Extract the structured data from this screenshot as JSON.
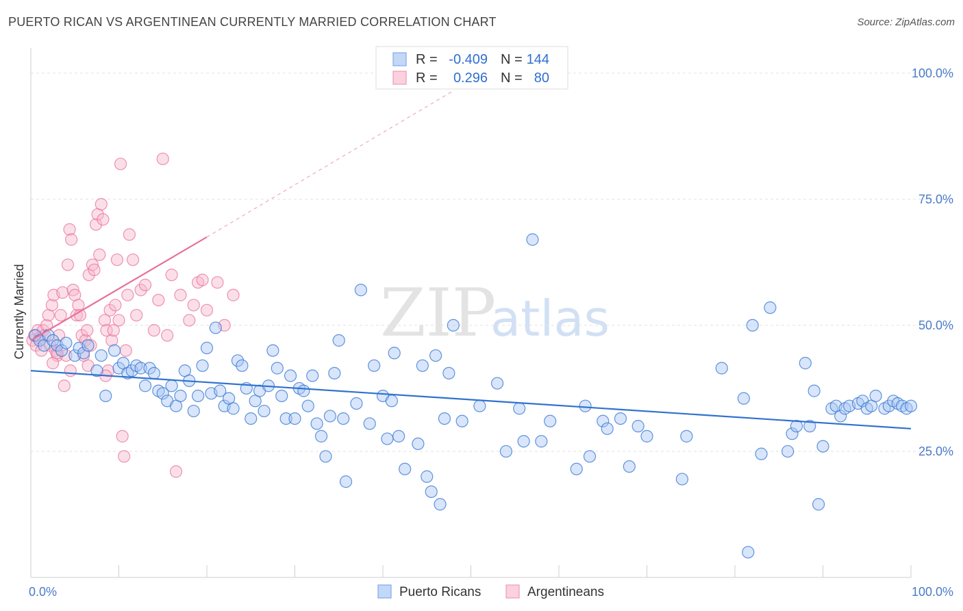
{
  "header": {
    "title": "PUERTO RICAN VS ARGENTINEAN CURRENTLY MARRIED CORRELATION CHART",
    "source": "Source: ZipAtlas.com"
  },
  "watermark": {
    "zip": "ZIP",
    "atlas": "atlas"
  },
  "legend_top": {
    "rows": [
      {
        "r_label": "R =",
        "r_value": "-0.409",
        "n_label": "N =",
        "n_value": "144",
        "color": "#7eaaf0"
      },
      {
        "r_label": "R =",
        "r_value": "0.296",
        "n_label": "N =",
        "n_value": "80",
        "color": "#f09ab8"
      }
    ]
  },
  "legend_bottom": {
    "items": [
      {
        "label": "Puerto Ricans",
        "color": "#7eaaf0"
      },
      {
        "label": "Argentineans",
        "color": "#f09ab8"
      }
    ]
  },
  "chart_data": {
    "type": "scatter",
    "title": "PUERTO RICAN VS ARGENTINEAN CURRENTLY MARRIED CORRELATION CHART",
    "ylabel": "Currently Married",
    "xlim": [
      0,
      100
    ],
    "ylim": [
      0,
      105
    ],
    "x_ticks": [
      "0.0%",
      "100.0%"
    ],
    "y_ticks": [
      {
        "value": 25,
        "label": "25.0%"
      },
      {
        "value": 50,
        "label": "50.0%"
      },
      {
        "value": 75,
        "label": "75.0%"
      },
      {
        "value": 100,
        "label": "100.0%"
      }
    ],
    "grid": true,
    "colors": {
      "blue": "#2f72d0",
      "pink": "#e8709a",
      "blue_fill": "#a9c6f5",
      "pink_fill": "#f7b8cd"
    },
    "series": [
      {
        "name": "Puerto Ricans",
        "trend": {
          "x": [
            0,
            100
          ],
          "y": [
            41,
            29.5
          ]
        },
        "points": [
          [
            0.5,
            48
          ],
          [
            1,
            47
          ],
          [
            1.5,
            46
          ],
          [
            2,
            48
          ],
          [
            2.5,
            47
          ],
          [
            3,
            46
          ],
          [
            3.5,
            45
          ],
          [
            4,
            46.5
          ],
          [
            5,
            44
          ],
          [
            5.5,
            45.5
          ],
          [
            6,
            44.5
          ],
          [
            6.5,
            46
          ],
          [
            7.5,
            41
          ],
          [
            8,
            44
          ],
          [
            8.5,
            36
          ],
          [
            9.5,
            45
          ],
          [
            10,
            41.5
          ],
          [
            10.5,
            42.5
          ],
          [
            11,
            40.5
          ],
          [
            11.5,
            41
          ],
          [
            12,
            42
          ],
          [
            12.5,
            41.5
          ],
          [
            13,
            38
          ],
          [
            13.5,
            41.5
          ],
          [
            14,
            40.5
          ],
          [
            14.5,
            37
          ],
          [
            15,
            36.5
          ],
          [
            15.5,
            35
          ],
          [
            16,
            38
          ],
          [
            16.5,
            34
          ],
          [
            17,
            36
          ],
          [
            17.5,
            41
          ],
          [
            18,
            39
          ],
          [
            18.5,
            33
          ],
          [
            19,
            36
          ],
          [
            19.5,
            42
          ],
          [
            20,
            45.5
          ],
          [
            20.5,
            36.5
          ],
          [
            21,
            49.5
          ],
          [
            21.5,
            37
          ],
          [
            22,
            34
          ],
          [
            22.5,
            35.5
          ],
          [
            23,
            33.5
          ],
          [
            23.5,
            43
          ],
          [
            24,
            42
          ],
          [
            24.5,
            37.5
          ],
          [
            25,
            31.5
          ],
          [
            25.5,
            35
          ],
          [
            26,
            37
          ],
          [
            26.5,
            33
          ],
          [
            27,
            38
          ],
          [
            27.5,
            45
          ],
          [
            28,
            41.5
          ],
          [
            28.5,
            36
          ],
          [
            29,
            31.5
          ],
          [
            29.5,
            40
          ],
          [
            30,
            31.5
          ],
          [
            30.5,
            37.5
          ],
          [
            31,
            37
          ],
          [
            31.5,
            34
          ],
          [
            32,
            40
          ],
          [
            32.5,
            30.5
          ],
          [
            33,
            28
          ],
          [
            33.5,
            24
          ],
          [
            34,
            32
          ],
          [
            34.5,
            40.5
          ],
          [
            35,
            47
          ],
          [
            35.5,
            31.5
          ],
          [
            35.8,
            19
          ],
          [
            37,
            34.5
          ],
          [
            37.5,
            57
          ],
          [
            38.5,
            30.5
          ],
          [
            39,
            42
          ],
          [
            40,
            36
          ],
          [
            40.5,
            27.5
          ],
          [
            41,
            35
          ],
          [
            41.3,
            44.5
          ],
          [
            41.8,
            28
          ],
          [
            42.5,
            21.5
          ],
          [
            44,
            26.5
          ],
          [
            44.5,
            42
          ],
          [
            45,
            20
          ],
          [
            45.5,
            17
          ],
          [
            46,
            44
          ],
          [
            46.5,
            14.5
          ],
          [
            47,
            31.5
          ],
          [
            47.5,
            40.5
          ],
          [
            48,
            50
          ],
          [
            49,
            31
          ],
          [
            51,
            34
          ],
          [
            53,
            38.5
          ],
          [
            54,
            25
          ],
          [
            55.5,
            33.5
          ],
          [
            56,
            27
          ],
          [
            57,
            67
          ],
          [
            58,
            27
          ],
          [
            59,
            31
          ],
          [
            62,
            21.5
          ],
          [
            63,
            34
          ],
          [
            63.5,
            24
          ],
          [
            65,
            31
          ],
          [
            65.5,
            29.5
          ],
          [
            67,
            31.5
          ],
          [
            68,
            22
          ],
          [
            69,
            30
          ],
          [
            70,
            28
          ],
          [
            74,
            19.5
          ],
          [
            74.5,
            28
          ],
          [
            78.5,
            41.5
          ],
          [
            81,
            35.5
          ],
          [
            81.5,
            5
          ],
          [
            82,
            50
          ],
          [
            83,
            24.5
          ],
          [
            84,
            53.5
          ],
          [
            86,
            25
          ],
          [
            86.5,
            28.5
          ],
          [
            87,
            30
          ],
          [
            88,
            42.5
          ],
          [
            88.5,
            30
          ],
          [
            89,
            37
          ],
          [
            89.5,
            14.5
          ],
          [
            90,
            26
          ],
          [
            91,
            33.5
          ],
          [
            91.5,
            34
          ],
          [
            92,
            32
          ],
          [
            92.5,
            33.5
          ],
          [
            93,
            34
          ],
          [
            94,
            34.5
          ],
          [
            94.5,
            35
          ],
          [
            95,
            33.5
          ],
          [
            95.5,
            34
          ],
          [
            96,
            36
          ],
          [
            97,
            33.5
          ],
          [
            97.5,
            34
          ],
          [
            98,
            35
          ],
          [
            98.5,
            34.5
          ],
          [
            99,
            34
          ],
          [
            99.5,
            33.5
          ],
          [
            100,
            34
          ]
        ]
      },
      {
        "name": "Argentineans",
        "trend": {
          "x": [
            0,
            20
          ],
          "y": [
            47,
            67.5
          ]
        },
        "trend_extended": {
          "x": [
            20,
            48
          ],
          "y": [
            67.5,
            96.5
          ]
        },
        "points": [
          [
            0.2,
            47
          ],
          [
            0.4,
            48
          ],
          [
            0.6,
            46
          ],
          [
            0.8,
            49
          ],
          [
            1,
            47.5
          ],
          [
            1.2,
            45
          ],
          [
            1.4,
            49
          ],
          [
            1.6,
            48
          ],
          [
            1.8,
            50
          ],
          [
            2,
            52
          ],
          [
            2.2,
            46
          ],
          [
            2.4,
            54
          ],
          [
            2.6,
            56
          ],
          [
            2.8,
            45
          ],
          [
            3,
            44
          ],
          [
            3.2,
            48
          ],
          [
            3.4,
            52
          ],
          [
            3.6,
            56.5
          ],
          [
            3.8,
            38
          ],
          [
            4,
            44
          ],
          [
            4.2,
            62
          ],
          [
            4.4,
            69
          ],
          [
            4.6,
            67
          ],
          [
            4.8,
            57
          ],
          [
            5,
            56
          ],
          [
            5.2,
            52
          ],
          [
            5.4,
            54
          ],
          [
            5.6,
            52
          ],
          [
            5.8,
            48
          ],
          [
            6,
            44
          ],
          [
            6.2,
            47
          ],
          [
            6.4,
            49
          ],
          [
            6.6,
            60
          ],
          [
            6.8,
            46
          ],
          [
            7,
            62
          ],
          [
            7.2,
            61
          ],
          [
            7.4,
            70
          ],
          [
            7.6,
            72
          ],
          [
            7.8,
            64
          ],
          [
            8,
            74
          ],
          [
            8.2,
            71
          ],
          [
            8.4,
            51
          ],
          [
            8.6,
            49
          ],
          [
            8.8,
            41
          ],
          [
            9,
            53
          ],
          [
            9.2,
            47
          ],
          [
            9.4,
            49
          ],
          [
            9.6,
            54
          ],
          [
            9.8,
            63
          ],
          [
            10,
            51
          ],
          [
            10.2,
            82
          ],
          [
            10.4,
            28
          ],
          [
            10.6,
            24
          ],
          [
            10.8,
            45
          ],
          [
            11,
            56
          ],
          [
            11.2,
            68
          ],
          [
            11.6,
            63
          ],
          [
            12,
            52
          ],
          [
            12.5,
            57
          ],
          [
            13,
            58
          ],
          [
            14,
            49
          ],
          [
            14.5,
            55
          ],
          [
            15,
            83
          ],
          [
            15.5,
            48
          ],
          [
            16,
            60
          ],
          [
            16.5,
            21
          ],
          [
            17,
            56
          ],
          [
            18,
            51
          ],
          [
            18.5,
            54
          ],
          [
            19,
            58.5
          ],
          [
            19.5,
            59
          ],
          [
            20,
            53
          ],
          [
            21.2,
            58.5
          ],
          [
            22,
            50
          ],
          [
            23,
            56
          ],
          [
            4.5,
            41
          ],
          [
            6.5,
            42
          ],
          [
            8.5,
            40
          ],
          [
            2.5,
            42.5
          ],
          [
            3,
            44.5
          ]
        ]
      }
    ]
  }
}
